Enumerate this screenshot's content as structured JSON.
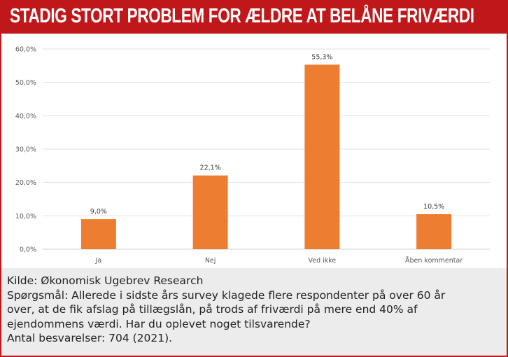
{
  "title": "STADIG STORT PROBLEM FOR ÆLDRE AT BELÅNE FRIVÆRDI",
  "chart_data": {
    "type": "bar",
    "categories": [
      "Ja",
      "Nej",
      "Ved ikke",
      "Åben kommentar"
    ],
    "values": [
      9.0,
      22.1,
      55.3,
      10.5
    ],
    "data_labels": [
      "9,0%",
      "22,1%",
      "55,3%",
      "10,5%"
    ],
    "ylim": [
      0,
      60
    ],
    "yticks": [
      "0,0%",
      "10,0%",
      "20,0%",
      "30,0%",
      "40,0%",
      "50,0%",
      "60,0%"
    ],
    "grid": true,
    "bar_color": "#ed7d31"
  },
  "footer": {
    "source": "Kilde: Økonomisk Ugebrev Research",
    "question_lines": [
      "Spørgsmål: Allerede i sidste års survey klagede flere respondenter på over 60 år",
      "over, at de fik afslag på tillægslån, på trods af friværdi på mere end 40% af",
      "ejendommens værdi. Har du oplevet noget tilsvarende?"
    ],
    "responses": "Antal besvarelser: 704 (2021)."
  }
}
